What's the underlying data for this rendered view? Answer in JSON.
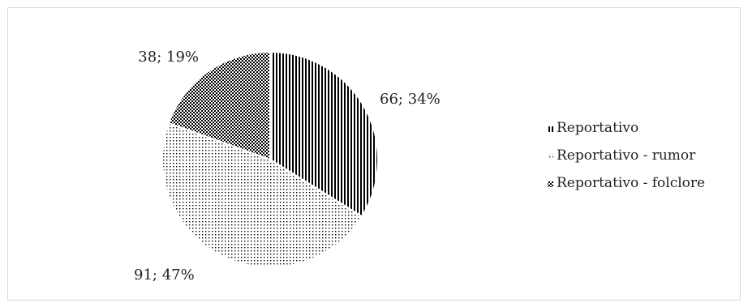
{
  "chart_data": {
    "type": "pie",
    "title": "",
    "categories": [
      "Reportativo",
      "Reportativo - rumor",
      "Reportativo - folclore"
    ],
    "values": [
      66,
      91,
      38
    ],
    "percents": [
      34,
      47,
      19
    ],
    "data_labels": [
      "66; 34%",
      "91; 47%",
      "38; 19%"
    ],
    "patterns": [
      "vertical-stripes",
      "dots",
      "crosshatch"
    ],
    "legend_position": "right",
    "start_angle": "12 o'clock, clockwise",
    "colors": {
      "ink": "#000000",
      "background": "#ffffff",
      "border": "#d9d9d9"
    }
  }
}
